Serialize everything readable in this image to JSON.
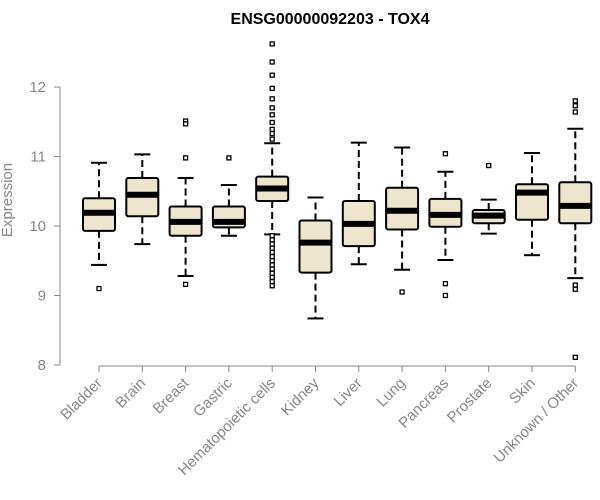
{
  "chart_data": {
    "type": "box",
    "title": "ENSG00000092203 - TOX4",
    "xlabel": "",
    "ylabel": "Expression",
    "ylim": [
      8,
      12.6
    ],
    "yticks": [
      8,
      9,
      10,
      11,
      12
    ],
    "grid": false,
    "box_color": "#ede5cd",
    "categories": [
      "Bladder",
      "Brain",
      "Breast",
      "Gastric",
      "Hematopoietic cells",
      "Kidney",
      "Liver",
      "Lung",
      "Pancreas",
      "Prostate",
      "Skin",
      "Unknown / Other"
    ],
    "series": [
      {
        "category": "Bladder",
        "whisker_low": 9.44,
        "q1": 9.93,
        "median": 10.19,
        "q3": 10.4,
        "whisker_high": 10.91,
        "outliers": [
          9.1
        ]
      },
      {
        "category": "Brain",
        "whisker_low": 9.74,
        "q1": 10.14,
        "median": 10.45,
        "q3": 10.69,
        "whisker_high": 11.03,
        "outliers": []
      },
      {
        "category": "Breast",
        "whisker_low": 9.28,
        "q1": 9.86,
        "median": 10.06,
        "q3": 10.28,
        "whisker_high": 10.69,
        "outliers": [
          11.51,
          11.47,
          10.98,
          9.16
        ]
      },
      {
        "category": "Gastric",
        "whisker_low": 9.86,
        "q1": 9.98,
        "median": 10.06,
        "q3": 10.28,
        "whisker_high": 10.59,
        "outliers": [
          10.98
        ]
      },
      {
        "category": "Hematopoietic cells",
        "whisker_low": 9.88,
        "q1": 10.36,
        "median": 10.54,
        "q3": 10.71,
        "whisker_high": 11.19,
        "outliers": [
          12.62,
          12.36,
          12.17,
          11.98,
          11.83,
          11.7,
          11.6,
          11.49,
          11.39,
          11.33,
          11.25,
          9.86,
          9.8,
          9.74,
          9.68,
          9.62,
          9.56,
          9.5,
          9.44,
          9.38,
          9.32,
          9.26,
          9.2,
          9.14
        ]
      },
      {
        "category": "Kidney",
        "whisker_low": 8.67,
        "q1": 9.33,
        "median": 9.76,
        "q3": 10.08,
        "whisker_high": 10.41,
        "outliers": []
      },
      {
        "category": "Liver",
        "whisker_low": 9.45,
        "q1": 9.71,
        "median": 10.03,
        "q3": 10.36,
        "whisker_high": 11.2,
        "outliers": []
      },
      {
        "category": "Lung",
        "whisker_low": 9.37,
        "q1": 9.95,
        "median": 10.22,
        "q3": 10.55,
        "whisker_high": 11.13,
        "outliers": [
          9.05
        ]
      },
      {
        "category": "Pancreas",
        "whisker_low": 9.51,
        "q1": 9.99,
        "median": 10.16,
        "q3": 10.39,
        "whisker_high": 10.78,
        "outliers": [
          11.04,
          9.17,
          9.0
        ]
      },
      {
        "category": "Prostate",
        "whisker_low": 9.89,
        "q1": 10.04,
        "median": 10.15,
        "q3": 10.23,
        "whisker_high": 10.38,
        "outliers": [
          10.87
        ]
      },
      {
        "category": "Skin",
        "whisker_low": 9.58,
        "q1": 10.09,
        "median": 10.48,
        "q3": 10.6,
        "whisker_high": 11.05,
        "outliers": []
      },
      {
        "category": "Unknown / Other",
        "whisker_low": 9.25,
        "q1": 10.04,
        "median": 10.29,
        "q3": 10.63,
        "whisker_high": 11.4,
        "outliers": [
          11.8,
          11.73,
          11.64,
          9.15,
          9.09,
          8.11
        ]
      }
    ]
  }
}
